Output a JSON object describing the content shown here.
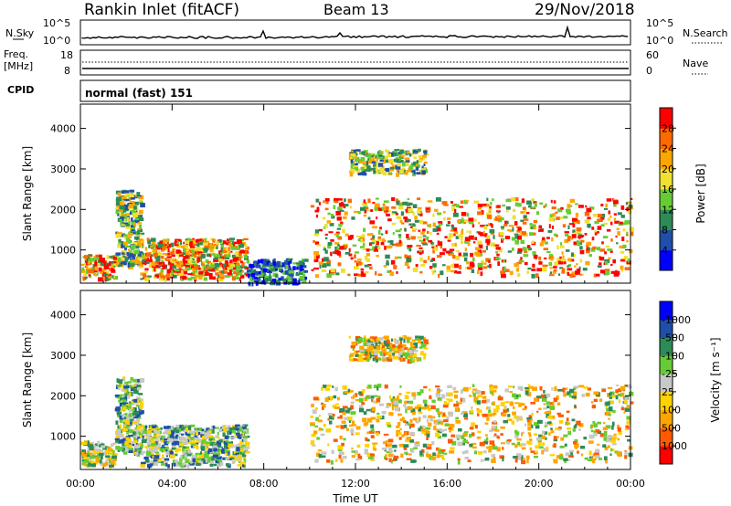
{
  "header": {
    "station": "Rankin Inlet (fitACF)",
    "beam": "Beam 13",
    "date": "29/Nov/2018"
  },
  "strip_panels": {
    "nsky": {
      "label": "N.Sky",
      "left_ticks": [
        "10^5",
        "10^0"
      ],
      "right_ticks": [
        "10^5",
        "10^0"
      ],
      "right_label": "N.Search",
      "right_line_style": "dotted"
    },
    "frequency": {
      "label_line1": "Freq.",
      "label_line2": "[MHz]",
      "left_ticks": [
        "18",
        "8"
      ],
      "right_ticks": [
        "60",
        "0"
      ],
      "right_label": "Nave",
      "right_line_style": "dotted"
    },
    "cpid": {
      "label": "CPID",
      "value": "normal (fast) 151"
    }
  },
  "colors": {
    "power_scale": [
      "#0000ff",
      "#1f4fa8",
      "#2e8b57",
      "#66cc33",
      "#f0e030",
      "#ffa500",
      "#ff6a00",
      "#ff0000"
    ],
    "velocity_scale": [
      "#ff0000",
      "#ff5a00",
      "#ffa500",
      "#ffd200",
      "#c8c8c8",
      "#66cc33",
      "#2e8b57",
      "#1f4fa8",
      "#0000ff"
    ]
  },
  "chart_data": [
    {
      "type": "heatmap",
      "name": "power-panel",
      "xlabel": "",
      "ylabel": "Slant Range [km]",
      "xlim": [
        "00:00",
        "24:00"
      ],
      "ylim": [
        180,
        4600
      ],
      "y_ticks": [
        "1000",
        "2000",
        "3000",
        "4000"
      ],
      "x_ticks": [
        "00:00",
        "04:00",
        "08:00",
        "12:00",
        "16:00",
        "20:00",
        "00:00"
      ],
      "colorbar": {
        "label": "Power [dB]",
        "ticks": [
          "4",
          "8",
          "12",
          "16",
          "20",
          "24",
          "28"
        ],
        "range": [
          0,
          30
        ]
      },
      "regions": [
        {
          "t": [
            0.0,
            1.5
          ],
          "r": [
            300,
            900
          ],
          "level": "high"
        },
        {
          "t": [
            1.5,
            2.6
          ],
          "r": [
            600,
            2500
          ],
          "level": "mid"
        },
        {
          "t": [
            2.6,
            7.2
          ],
          "r": [
            300,
            1300
          ],
          "level": "high"
        },
        {
          "t": [
            7.2,
            9.8
          ],
          "r": [
            200,
            800
          ],
          "level": "low"
        },
        {
          "t": [
            10.0,
            24.0
          ],
          "r": [
            400,
            2300
          ],
          "level": "high"
        },
        {
          "t": [
            11.7,
            15.0
          ],
          "r": [
            2900,
            3500
          ],
          "level": "mid"
        }
      ]
    },
    {
      "type": "heatmap",
      "name": "velocity-panel",
      "xlabel": "Time UT",
      "ylabel": "Slant Range [km]",
      "xlim": [
        "00:00",
        "24:00"
      ],
      "ylim": [
        180,
        4600
      ],
      "y_ticks": [
        "1000",
        "2000",
        "3000",
        "4000"
      ],
      "x_ticks": [
        "00:00",
        "04:00",
        "08:00",
        "12:00",
        "16:00",
        "20:00",
        "00:00"
      ],
      "colorbar": {
        "label": "Velocity [m s⁻¹]",
        "ticks": [
          "1000",
          "500",
          "100",
          "25",
          "-25",
          "-100",
          "-500",
          "-1000"
        ],
        "range": [
          -1000,
          1000
        ]
      },
      "regions": [
        {
          "t": [
            0.0,
            1.5
          ],
          "r": [
            300,
            900
          ],
          "level": "mixed"
        },
        {
          "t": [
            1.5,
            2.6
          ],
          "r": [
            600,
            2500
          ],
          "level": "toward"
        },
        {
          "t": [
            2.6,
            7.2
          ],
          "r": [
            300,
            1300
          ],
          "level": "toward"
        },
        {
          "t": [
            10.0,
            24.0
          ],
          "r": [
            400,
            2300
          ],
          "level": "away"
        },
        {
          "t": [
            11.7,
            15.0
          ],
          "r": [
            2900,
            3500
          ],
          "level": "away"
        }
      ]
    }
  ]
}
